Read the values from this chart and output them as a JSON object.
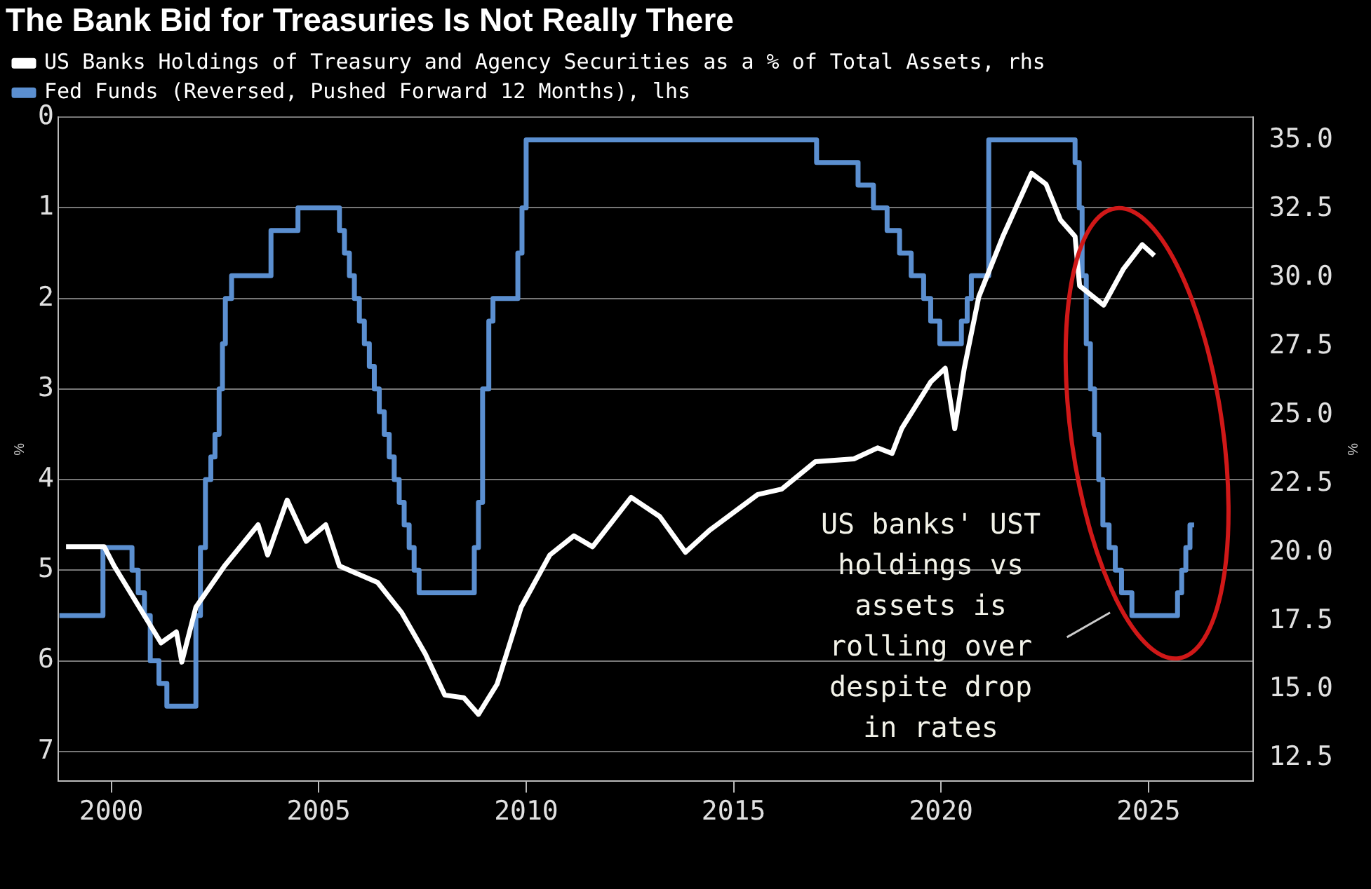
{
  "chart_data": {
    "type": "line",
    "title": "The Bank Bid for Treasuries Is Not Really There",
    "ylabel": "%",
    "y2label": "%",
    "xlim": [
      1998.72,
      2027.53
    ],
    "xticks": [
      2000,
      2005,
      2010,
      2015,
      2020,
      2025
    ],
    "ylim": [
      7.33,
      0
    ],
    "yticks": [
      0,
      1,
      2,
      3,
      4,
      5,
      6,
      7
    ],
    "y2lim": [
      11.66,
      35.84
    ],
    "y2ticks": [
      12.5,
      {
        "value": 15,
        "label": "15.0"
      },
      17.5,
      {
        "value": 20,
        "label": "20.0"
      },
      22.5,
      {
        "value": 25,
        "label": "25.0"
      },
      27.5,
      {
        "value": 30,
        "label": "30.0"
      },
      32.5,
      {
        "value": 35,
        "label": "35.0"
      }
    ],
    "grid": "y",
    "legend": "top left",
    "annotations": [
      "US banks' UST holdings vs assets is rolling over despite drop in rates"
    ],
    "series": [
      {
        "name": "US Banks Holdings of Treasury and Agency Securities as a % of Total Assets, rhs",
        "color": "#ffffff",
        "type": "line",
        "axis": "y2",
        "x": [
          1998.91,
          1999.83,
          2000.07,
          2001.2,
          2001.57,
          2001.7,
          2002.04,
          2002.73,
          2003.54,
          2003.77,
          2004.24,
          2004.7,
          2005.17,
          2005.5,
          2006.42,
          2007.0,
          2007.57,
          2008.04,
          2008.5,
          2008.85,
          2009.3,
          2009.88,
          2010.57,
          2011.15,
          2011.6,
          2012.53,
          2013.22,
          2013.84,
          2014.42,
          2015.58,
          2016.16,
          2016.97,
          2017.9,
          2018.47,
          2018.82,
          2019.05,
          2019.75,
          2020.1,
          2020.33,
          2020.56,
          2020.91,
          2021.49,
          2022.18,
          2022.53,
          2022.88,
          2023.23,
          2023.34,
          2023.92,
          2024.39,
          2024.85,
          2025.14
        ],
        "values": [
          20.2,
          20.2,
          19.5,
          16.7,
          17.1,
          16.0,
          18.0,
          19.5,
          21.0,
          19.9,
          21.9,
          20.4,
          21.0,
          19.5,
          18.9,
          17.8,
          16.3,
          14.8,
          14.7,
          14.1,
          15.2,
          18.0,
          19.9,
          20.6,
          20.2,
          22.0,
          21.3,
          20.0,
          20.8,
          22.1,
          22.3,
          23.3,
          23.4,
          23.8,
          23.6,
          24.5,
          26.2,
          26.7,
          24.5,
          26.7,
          29.3,
          31.5,
          33.8,
          33.4,
          32.1,
          31.5,
          29.7,
          29.0,
          30.3,
          31.2,
          30.8
        ]
      },
      {
        "name": "Fed Funds (Reversed, Pushed Forward 12 Months), lhs",
        "color": "#5b8fd0",
        "type": "step",
        "x": [
          1998.75,
          1999.8,
          2000.5,
          2000.65,
          2000.8,
          2000.94,
          2001.15,
          2001.34,
          2002.04,
          2002.15,
          2002.27,
          2002.4,
          2002.5,
          2002.6,
          2002.68,
          2002.75,
          2002.9,
          2003.85,
          2004.5,
          2005.5,
          2005.62,
          2005.74,
          2005.86,
          2005.98,
          2006.1,
          2006.22,
          2006.34,
          2006.46,
          2006.58,
          2006.7,
          2006.82,
          2006.94,
          2007.06,
          2007.18,
          2007.3,
          2007.42,
          2008.75,
          2008.85,
          2008.95,
          2009.1,
          2009.2,
          2009.8,
          2009.9,
          2010.0,
          2017.0,
          2018.0,
          2018.37,
          2018.7,
          2019.0,
          2019.28,
          2019.58,
          2019.75,
          2019.97,
          2020.49,
          2020.63,
          2020.73,
          2021.15,
          2023.23,
          2023.33,
          2023.4,
          2023.5,
          2023.6,
          2023.7,
          2023.8,
          2023.9,
          2024.05,
          2024.2,
          2024.35,
          2024.6,
          2025.7,
          2025.8,
          2025.9,
          2026.0,
          2026.1
        ],
        "values": [
          5.5,
          4.75,
          5.0,
          5.25,
          5.5,
          6.0,
          6.25,
          6.5,
          5.5,
          4.75,
          4.0,
          3.75,
          3.5,
          3.0,
          2.5,
          2.0,
          1.75,
          1.25,
          1.0,
          1.25,
          1.5,
          1.75,
          2.0,
          2.25,
          2.5,
          2.75,
          3.0,
          3.25,
          3.5,
          3.75,
          4.0,
          4.25,
          4.5,
          4.75,
          5.0,
          5.25,
          4.75,
          4.25,
          3.0,
          2.25,
          2.0,
          1.5,
          1.0,
          0.25,
          0.5,
          0.75,
          1.0,
          1.25,
          1.5,
          1.75,
          2.0,
          2.25,
          2.5,
          2.25,
          2.0,
          1.75,
          0.25,
          0.5,
          1.0,
          1.75,
          2.5,
          3.0,
          3.5,
          4.0,
          4.5,
          4.75,
          5.0,
          5.25,
          5.5,
          5.25,
          5.0,
          4.75,
          4.5,
          4.5
        ]
      }
    ]
  }
}
